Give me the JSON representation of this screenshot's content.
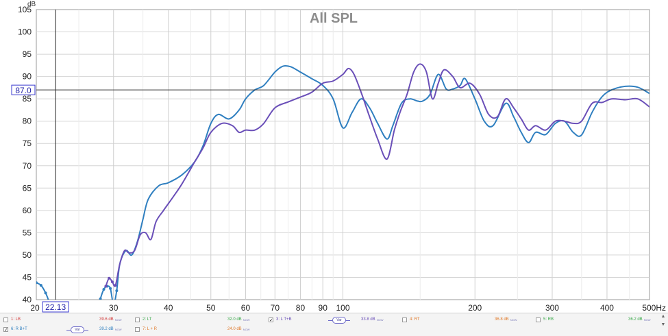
{
  "chart_data": {
    "type": "line",
    "title": "All SPL",
    "ylabel": "dB",
    "xlabel": "",
    "x_scale": "log",
    "xlim": [
      20,
      500
    ],
    "ylim": [
      40,
      105
    ],
    "x_tick_labels": [
      {
        "value": 20,
        "label": "20"
      },
      {
        "value": 30,
        "label": "30"
      },
      {
        "value": 40,
        "label": "40"
      },
      {
        "value": 50,
        "label": "50"
      },
      {
        "value": 60,
        "label": "60"
      },
      {
        "value": 70,
        "label": "70"
      },
      {
        "value": 80,
        "label": "80"
      },
      {
        "value": 90,
        "label": "90"
      },
      {
        "value": 100,
        "label": "100"
      },
      {
        "value": 200,
        "label": "200"
      },
      {
        "value": 300,
        "label": "300"
      },
      {
        "value": 400,
        "label": "400"
      },
      {
        "value": 500,
        "label": "500Hz"
      }
    ],
    "x_minor_ticks": [
      25,
      35,
      45,
      55,
      65,
      75,
      85,
      95,
      150,
      250,
      350,
      450
    ],
    "y_ticks": [
      40,
      45,
      50,
      55,
      60,
      65,
      70,
      75,
      80,
      85,
      90,
      95,
      100,
      105
    ],
    "grid": true,
    "cursor": {
      "x": 22.13,
      "x_label": "22.13",
      "y": 87.0,
      "y_label": "87.0"
    },
    "series": [
      {
        "color": "#2f7fc0",
        "x": [
          20,
          20.5,
          21,
          21.5,
          22,
          27.5,
          28,
          28.5,
          29,
          29.5,
          30,
          30.5,
          31,
          32,
          33,
          34,
          35,
          36,
          38,
          40,
          43,
          46,
          48,
          50,
          52,
          55,
          58,
          60,
          63,
          66,
          70,
          73,
          76,
          80,
          85,
          90,
          95,
          100,
          105,
          110,
          115,
          120,
          126,
          130,
          136,
          142,
          148,
          152,
          158,
          165,
          172,
          178,
          185,
          190,
          200,
          210,
          220,
          235,
          245,
          255,
          265,
          275,
          290,
          305,
          320,
          335,
          350,
          370,
          390,
          410,
          440,
          470,
          500
        ],
        "y": [
          43.8,
          43.2,
          41.5,
          39,
          37,
          37,
          40.2,
          42.3,
          43,
          42.5,
          39,
          42,
          48,
          51,
          50,
          53,
          58,
          62.5,
          65.5,
          66.2,
          68,
          71,
          74.5,
          79.5,
          81.5,
          80.5,
          82.5,
          85,
          87,
          88,
          91,
          92.3,
          92.2,
          91,
          89.5,
          88,
          85,
          78.5,
          82,
          85,
          83,
          79.5,
          76,
          79,
          84,
          85,
          84.5,
          84.5,
          86,
          90.5,
          87.2,
          87.2,
          88,
          89.5,
          85,
          80,
          79,
          84,
          81,
          77.5,
          75.2,
          77.5,
          77,
          79.5,
          80,
          77.5,
          76.9,
          82,
          85.5,
          87,
          87.8,
          87.6,
          86.2
        ]
      },
      {
        "color": "#6a4fb8",
        "x": [
          28.8,
          29.3,
          29.8,
          30.3,
          31,
          31.8,
          32.5,
          33.5,
          34.5,
          35.5,
          36.5,
          37.5,
          39,
          41,
          43,
          46,
          48,
          50,
          53,
          56,
          58,
          60,
          63,
          66,
          70,
          75,
          80,
          85,
          90,
          95,
          100,
          103,
          106,
          110,
          115,
          120,
          126,
          131,
          135,
          140,
          145,
          150,
          155,
          160,
          165,
          170,
          178,
          185,
          195,
          205,
          215,
          225,
          235,
          245,
          255,
          265,
          275,
          290,
          305,
          320,
          335,
          350,
          370,
          390,
          410,
          440,
          470,
          500
        ],
        "y": [
          43,
          44.8,
          44,
          43.2,
          48,
          51,
          50.5,
          51,
          54.5,
          55,
          53.5,
          57.5,
          60,
          63,
          66,
          71,
          74,
          77.5,
          79.5,
          79,
          77.5,
          78,
          78,
          79.5,
          83,
          84.3,
          85.4,
          86.5,
          88.5,
          89,
          90.5,
          91.8,
          90.5,
          86.5,
          81,
          76,
          71.5,
          78,
          82,
          86,
          91,
          92.8,
          91,
          85,
          88.5,
          91.5,
          90,
          87.5,
          88.5,
          86,
          81.5,
          81,
          85,
          83,
          80.5,
          78,
          79,
          78,
          80,
          80,
          79.5,
          80,
          84,
          84.2,
          85,
          84.8,
          85,
          83.2
        ]
      }
    ],
    "legend": [
      {
        "label": "1: LB",
        "value": "39.6 dB",
        "checked": false,
        "color": "#d23c3c"
      },
      {
        "label": "2: LT",
        "value": "32.0 dB",
        "checked": false,
        "color": "#3aa84a"
      },
      {
        "label": "3: L T+B",
        "value": "33.8 dB",
        "checked": true,
        "color": "#6a4fb8"
      },
      {
        "label": "4: RT",
        "value": "36.8 dB",
        "checked": false,
        "color": "#e07a2a"
      },
      {
        "label": "5: RB",
        "value": "36.2 dB",
        "checked": false,
        "color": "#3aa84a"
      },
      {
        "label": "6: R B+T",
        "value": "39.2 dB",
        "checked": true,
        "color": "#2f7fc0"
      },
      {
        "label": "7: L + R",
        "value": "24.0 dB",
        "checked": false,
        "color": "#e07a2a"
      }
    ],
    "legend_now": "NOW",
    "legend_var": "Var"
  }
}
